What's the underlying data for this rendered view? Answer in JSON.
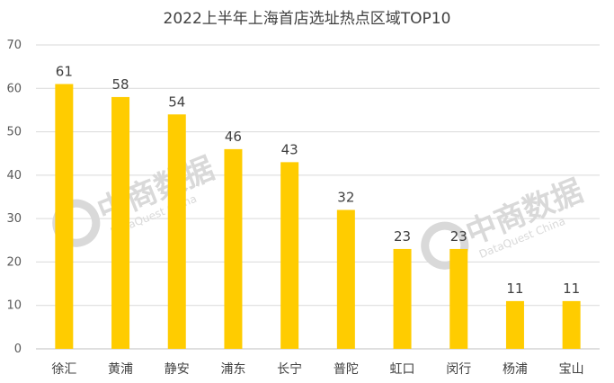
{
  "chart_data": {
    "type": "bar",
    "title": "2022上半年上海首店选址热点区域TOP10",
    "categories": [
      "徐汇",
      "黄浦",
      "静安",
      "浦东",
      "长宁",
      "普陀",
      "虹口",
      "闵行",
      "杨浦",
      "宝山"
    ],
    "values": [
      61,
      58,
      54,
      46,
      43,
      32,
      23,
      23,
      11,
      11
    ],
    "ylim": [
      0,
      70
    ],
    "yticks": [
      0,
      10,
      20,
      30,
      40,
      50,
      60,
      70
    ],
    "xlabel": "",
    "ylabel": "",
    "grid": true,
    "bar_color": "#FFCC00"
  },
  "watermark": {
    "text": "中商数据",
    "subtext": "DataQuest China",
    "color": "#d9d9d9"
  }
}
